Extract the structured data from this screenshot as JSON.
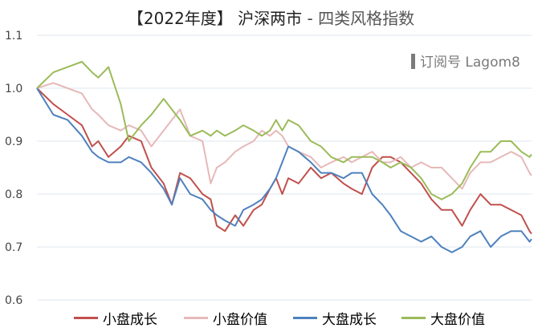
{
  "title": {
    "main": "【2022年度】 沪深两市",
    "separator": " - ",
    "subtitle": "四类风格指数"
  },
  "watermark": "订阅号 Lagom8",
  "colors": {
    "small_growth": "#c0504d",
    "small_value": "#e6b9b8",
    "large_growth": "#4f81bd",
    "large_value": "#9bbb59",
    "grid": "#dfe7ef",
    "axis_text": "#444444"
  },
  "chart_data": {
    "type": "line",
    "title": "【2022年度】 沪深两市 - 四类风格指数",
    "xlabel": "",
    "ylabel": "",
    "ylim": [
      0.6,
      1.1
    ],
    "yticks": [
      "0.6",
      "0.7",
      "0.8",
      "0.9",
      "1.0",
      "1.1"
    ],
    "grid": true,
    "legend": "bottom",
    "x": [
      0,
      8,
      15,
      22,
      27,
      30,
      35,
      41,
      45,
      51,
      56,
      62,
      66,
      70,
      75,
      81,
      85,
      88,
      92,
      97,
      101,
      106,
      110,
      114,
      117,
      120,
      123,
      128,
      134,
      139,
      144,
      150,
      154,
      159,
      164,
      169,
      173,
      178,
      183,
      188,
      193,
      198,
      203,
      208,
      212,
      217,
      222,
      227,
      232,
      237,
      241,
      242
    ],
    "series": [
      {
        "name": "小盘成长",
        "color": "#c0504d",
        "values": [
          1.0,
          0.97,
          0.95,
          0.93,
          0.89,
          0.9,
          0.87,
          0.89,
          0.91,
          0.9,
          0.85,
          0.82,
          0.78,
          0.84,
          0.83,
          0.8,
          0.79,
          0.74,
          0.73,
          0.76,
          0.74,
          0.77,
          0.78,
          0.81,
          0.83,
          0.8,
          0.83,
          0.82,
          0.85,
          0.83,
          0.84,
          0.82,
          0.81,
          0.8,
          0.85,
          0.87,
          0.87,
          0.86,
          0.84,
          0.82,
          0.79,
          0.77,
          0.77,
          0.74,
          0.77,
          0.8,
          0.78,
          0.78,
          0.77,
          0.76,
          0.73,
          0.725
        ]
      },
      {
        "name": "小盘价值",
        "color": "#e6b9b8",
        "values": [
          1.0,
          1.01,
          1.0,
          0.99,
          0.96,
          0.95,
          0.93,
          0.92,
          0.93,
          0.92,
          0.89,
          0.92,
          0.94,
          0.96,
          0.91,
          0.9,
          0.82,
          0.85,
          0.86,
          0.88,
          0.89,
          0.9,
          0.92,
          0.91,
          0.92,
          0.91,
          0.89,
          0.88,
          0.87,
          0.85,
          0.86,
          0.87,
          0.86,
          0.87,
          0.88,
          0.86,
          0.86,
          0.87,
          0.85,
          0.86,
          0.85,
          0.85,
          0.83,
          0.81,
          0.84,
          0.86,
          0.86,
          0.87,
          0.88,
          0.87,
          0.84,
          0.835
        ]
      },
      {
        "name": "大盘成长",
        "color": "#4f81bd",
        "values": [
          1.0,
          0.95,
          0.94,
          0.91,
          0.88,
          0.87,
          0.86,
          0.86,
          0.87,
          0.86,
          0.84,
          0.81,
          0.78,
          0.83,
          0.8,
          0.79,
          0.77,
          0.76,
          0.75,
          0.74,
          0.77,
          0.78,
          0.79,
          0.81,
          0.83,
          0.86,
          0.89,
          0.88,
          0.86,
          0.84,
          0.84,
          0.83,
          0.84,
          0.84,
          0.8,
          0.78,
          0.76,
          0.73,
          0.72,
          0.71,
          0.72,
          0.7,
          0.69,
          0.7,
          0.72,
          0.73,
          0.7,
          0.72,
          0.73,
          0.73,
          0.71,
          0.715
        ]
      },
      {
        "name": "大盘价值",
        "color": "#9bbb59",
        "values": [
          1.0,
          1.03,
          1.04,
          1.05,
          1.03,
          1.02,
          1.04,
          0.97,
          0.9,
          0.93,
          0.95,
          0.98,
          0.96,
          0.94,
          0.91,
          0.92,
          0.91,
          0.92,
          0.91,
          0.92,
          0.93,
          0.92,
          0.91,
          0.92,
          0.94,
          0.92,
          0.94,
          0.93,
          0.9,
          0.89,
          0.87,
          0.86,
          0.87,
          0.87,
          0.87,
          0.86,
          0.85,
          0.86,
          0.85,
          0.83,
          0.8,
          0.79,
          0.8,
          0.82,
          0.85,
          0.88,
          0.88,
          0.9,
          0.9,
          0.88,
          0.87,
          0.875
        ]
      }
    ]
  }
}
